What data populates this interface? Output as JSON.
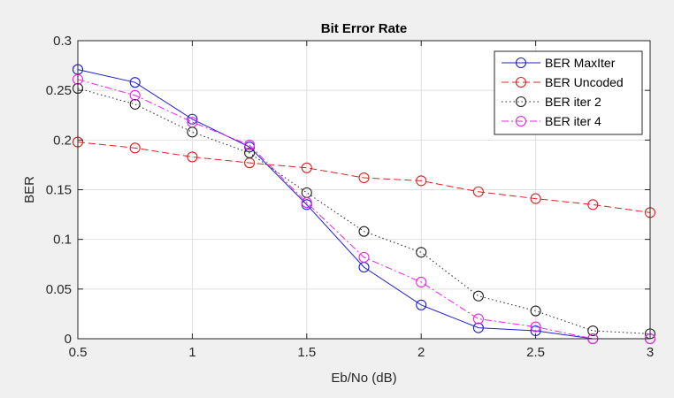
{
  "chart_data": {
    "type": "line",
    "title": "Bit Error Rate",
    "xlabel": "Eb/No (dB)",
    "ylabel": "BER",
    "xlim": [
      0.5,
      3
    ],
    "ylim": [
      0,
      0.3
    ],
    "x_ticks": [
      0.5,
      1,
      1.5,
      2,
      2.5,
      3
    ],
    "x_tick_labels": [
      "0.5",
      "1",
      "1.5",
      "2",
      "2.5",
      "3"
    ],
    "y_ticks": [
      0,
      0.05,
      0.1,
      0.15,
      0.2,
      0.25,
      0.3
    ],
    "y_tick_labels": [
      "0",
      "0.05",
      "0.1",
      "0.15",
      "0.2",
      "0.25",
      "0.3"
    ],
    "grid": true,
    "legend_position": "top-right",
    "x": [
      0.5,
      0.75,
      1,
      1.25,
      1.5,
      1.75,
      2,
      2.25,
      2.5,
      2.75,
      3
    ],
    "series": [
      {
        "name": "BER MaxIter",
        "color": "#1f1fd6",
        "dash": "solid",
        "values": [
          0.271,
          0.258,
          0.221,
          0.193,
          0.135,
          0.072,
          0.034,
          0.011,
          0.008,
          0.0,
          0.0
        ]
      },
      {
        "name": "BER Uncoded",
        "color": "#e02020",
        "dash": "dashed",
        "values": [
          0.198,
          0.192,
          0.183,
          0.177,
          0.172,
          0.162,
          0.159,
          0.148,
          0.141,
          0.135,
          0.127
        ]
      },
      {
        "name": "BER iter 2",
        "color": "#222222",
        "dash": "dotted",
        "values": [
          0.252,
          0.236,
          0.208,
          0.187,
          0.147,
          0.108,
          0.087,
          0.043,
          0.028,
          0.008,
          0.005
        ]
      },
      {
        "name": "BER iter 4",
        "color": "#ee22ee",
        "dash": "dashdot",
        "values": [
          0.261,
          0.245,
          0.218,
          0.195,
          0.137,
          0.082,
          0.057,
          0.02,
          0.012,
          0.0,
          0.0
        ]
      }
    ]
  }
}
